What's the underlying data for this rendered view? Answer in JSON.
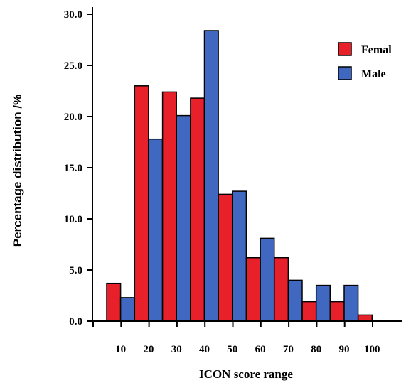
{
  "chart_data": {
    "type": "bar",
    "categories": [
      "10",
      "20",
      "30",
      "40",
      "50",
      "60",
      "70",
      "80",
      "90",
      "100"
    ],
    "series": [
      {
        "name": "Femal",
        "color": "#e8202a",
        "values": [
          3.7,
          23.0,
          22.4,
          21.8,
          12.4,
          6.2,
          6.2,
          1.9,
          1.9,
          0.6
        ]
      },
      {
        "name": "Male",
        "color": "#4068c0",
        "values": [
          2.3,
          17.8,
          20.1,
          28.4,
          12.7,
          8.1,
          4.0,
          3.5,
          3.5,
          null
        ]
      }
    ],
    "xlabel": "ICON score range",
    "ylabel": "Percentage distribution /%",
    "ylim": [
      0,
      30
    ],
    "yticks": [
      "0.0",
      "5.0",
      "10.0",
      "15.0",
      "20.0",
      "25.0",
      "30.0"
    ],
    "grid": false,
    "legend": "top-right"
  }
}
